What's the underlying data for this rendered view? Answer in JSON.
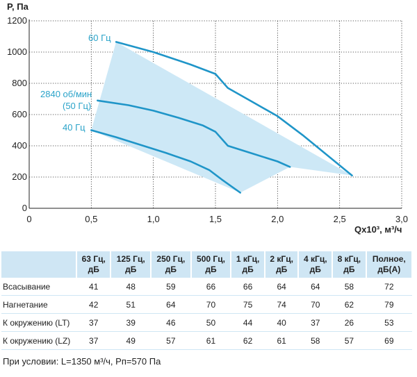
{
  "chart_data": {
    "type": "line",
    "ylabel": "P, Па",
    "xlabel": "Qx10³, м³/ч",
    "xlim": [
      0,
      3.0
    ],
    "ylim": [
      0,
      1200
    ],
    "x_ticks": [
      "0",
      "0,5",
      "1,0",
      "1,5",
      "2,0",
      "2,5",
      "3,0"
    ],
    "y_ticks": [
      "0",
      "200",
      "400",
      "600",
      "800",
      "1000",
      "1200"
    ],
    "grid": true,
    "line_color": "#1f95c8",
    "area_color": "#cde8f6",
    "area_polygon": [
      [
        0.7,
        1065
      ],
      [
        0.5,
        500
      ],
      [
        1.7,
        100
      ],
      [
        2.1,
        265
      ],
      [
        2.6,
        210
      ]
    ],
    "series": [
      {
        "name": "60 Гц",
        "points": [
          [
            0.7,
            1065
          ],
          [
            1.0,
            1000
          ],
          [
            1.3,
            920
          ],
          [
            1.5,
            860
          ],
          [
            1.6,
            770
          ],
          [
            1.8,
            680
          ],
          [
            2.0,
            590
          ],
          [
            2.2,
            470
          ],
          [
            2.4,
            340
          ],
          [
            2.6,
            210
          ]
        ]
      },
      {
        "name": "2840 об/мин (50 Гц)",
        "points": [
          [
            0.55,
            690
          ],
          [
            0.8,
            660
          ],
          [
            1.0,
            625
          ],
          [
            1.2,
            580
          ],
          [
            1.4,
            530
          ],
          [
            1.5,
            490
          ],
          [
            1.6,
            400
          ],
          [
            1.8,
            350
          ],
          [
            2.0,
            300
          ],
          [
            2.1,
            265
          ]
        ]
      },
      {
        "name": "40 Гц",
        "points": [
          [
            0.5,
            500
          ],
          [
            0.7,
            455
          ],
          [
            0.9,
            405
          ],
          [
            1.1,
            355
          ],
          [
            1.3,
            300
          ],
          [
            1.45,
            245
          ],
          [
            1.55,
            185
          ],
          [
            1.7,
            100
          ]
        ]
      }
    ],
    "label_lines": [
      {
        "text": "60 Гц"
      },
      {
        "text": "2840 об/мин"
      },
      {
        "text": "(50 Гц)"
      },
      {
        "text": "40 Гц"
      }
    ]
  },
  "table": {
    "headers": [
      [
        "",
        ""
      ],
      [
        "63 Гц,",
        "дБ"
      ],
      [
        "125 Гц,",
        "дБ"
      ],
      [
        "250 Гц,",
        "дБ"
      ],
      [
        "500 Гц,",
        "дБ"
      ],
      [
        "1 кГц,",
        "дБ"
      ],
      [
        "2 кГц,",
        "дБ"
      ],
      [
        "4 кГц,",
        "дБ"
      ],
      [
        "8 кГц,",
        "дБ"
      ],
      [
        "Полное,",
        "дБ(А)"
      ]
    ],
    "rows": [
      [
        "Всасывание",
        "41",
        "48",
        "59",
        "66",
        "66",
        "64",
        "64",
        "58",
        "72"
      ],
      [
        "Нагнетание",
        "42",
        "51",
        "64",
        "70",
        "75",
        "74",
        "70",
        "62",
        "79"
      ],
      [
        "К окружению (LT)",
        "37",
        "39",
        "46",
        "50",
        "44",
        "40",
        "37",
        "26",
        "53"
      ],
      [
        "К окружению (LZ)",
        "37",
        "49",
        "57",
        "61",
        "62",
        "61",
        "58",
        "57",
        "69"
      ]
    ]
  },
  "footnote": "При условии: L=1350 м³/ч, Рп=570 Па"
}
